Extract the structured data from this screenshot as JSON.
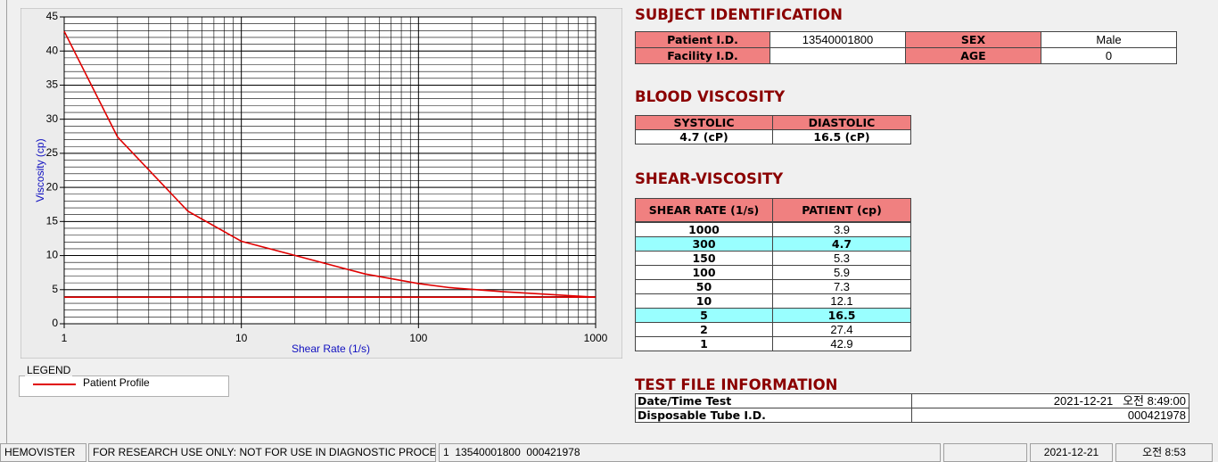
{
  "chart_data": {
    "type": "line",
    "xlabel": "Shear Rate (1/s)",
    "ylabel": "Viscosity (cp)",
    "x": [
      1,
      2,
      5,
      10,
      50,
      100,
      150,
      300,
      1000
    ],
    "series": [
      {
        "name": "Patient Profile",
        "color": "#e00000",
        "values": [
          42.9,
          27.4,
          16.5,
          12.1,
          7.3,
          5.9,
          5.3,
          4.7,
          3.9
        ]
      }
    ],
    "hline": 3.9,
    "xlog": true,
    "grid": true,
    "xlim": [
      1,
      1000
    ],
    "xticks": [
      1,
      10,
      100,
      1000
    ],
    "ylim": [
      0,
      45
    ],
    "yticks": [
      0,
      5,
      10,
      15,
      20,
      25,
      30,
      35,
      40,
      45
    ]
  },
  "legend": {
    "title": "LEGEND"
  },
  "subject": {
    "title": "SUBJECT IDENTIFICATION",
    "patient_label": "Patient I.D.",
    "patient_id": "13540001800",
    "sex_label": "SEX",
    "sex": "Male",
    "facility_label": "Facility I.D.",
    "age_label": "AGE",
    "age": "0"
  },
  "blood": {
    "title": "BLOOD VISCOSITY",
    "headers": [
      "SYSTOLIC",
      "DIASTOLIC"
    ],
    "values": [
      "4.7 (cP)",
      "16.5 (cP)"
    ]
  },
  "shear": {
    "title": "SHEAR-VISCOSITY",
    "headers": [
      "SHEAR RATE (1/s)",
      "PATIENT (cp)"
    ],
    "rows": [
      {
        "rate": "1000",
        "value": "3.9"
      },
      {
        "rate": "300",
        "value": "4.7",
        "highlight": true
      },
      {
        "rate": "150",
        "value": "5.3"
      },
      {
        "rate": "100",
        "value": "5.9"
      },
      {
        "rate": "50",
        "value": "7.3"
      },
      {
        "rate": "10",
        "value": "12.1"
      },
      {
        "rate": "5",
        "value": "16.5",
        "highlight": true
      },
      {
        "rate": "2",
        "value": "27.4"
      },
      {
        "rate": "1",
        "value": "42.9"
      }
    ]
  },
  "test_file": {
    "title": "TEST FILE INFORMATION",
    "date_label": "Date/Time Test",
    "date": "2021-12-21   오전 8:49:00",
    "tube_label": "Disposable Tube I.D.",
    "tube": "000421978"
  },
  "status": [
    "HEMOVISTER",
    "FOR RESEARCH USE ONLY: NOT FOR USE IN DIAGNOSTIC PROCEDURES",
    "1  13540001800  000421978",
    "2021-12-21",
    "오전 8:53"
  ]
}
